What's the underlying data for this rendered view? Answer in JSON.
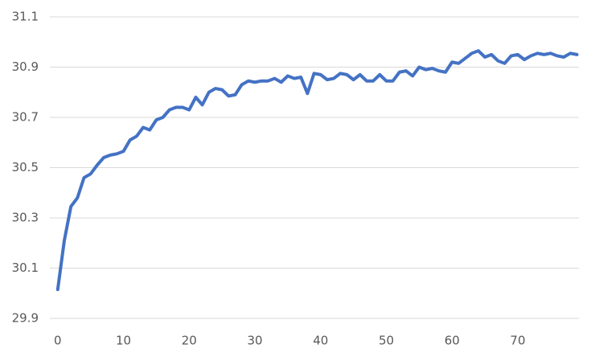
{
  "chart_data": {
    "type": "line",
    "x": [
      0,
      1,
      2,
      3,
      4,
      5,
      6,
      7,
      8,
      9,
      10,
      11,
      12,
      13,
      14,
      15,
      16,
      17,
      18,
      19,
      20,
      21,
      22,
      23,
      24,
      25,
      26,
      27,
      28,
      29,
      30,
      31,
      32,
      33,
      34,
      35,
      36,
      37,
      38,
      39,
      40,
      41,
      42,
      43,
      44,
      45,
      46,
      47,
      48,
      49,
      50,
      51,
      52,
      53,
      54,
      55,
      56,
      57,
      58,
      59,
      60,
      61,
      62,
      63,
      64,
      65,
      66,
      67,
      68,
      69,
      70,
      71,
      72,
      73,
      74,
      75,
      76,
      77,
      78,
      79
    ],
    "series": [
      {
        "color": "#4472c4",
        "values": [
          30.015,
          30.21,
          30.345,
          30.38,
          30.46,
          30.475,
          30.51,
          30.54,
          30.55,
          30.555,
          30.565,
          30.61,
          30.625,
          30.66,
          30.65,
          30.69,
          30.7,
          30.73,
          30.74,
          30.74,
          30.73,
          30.78,
          30.75,
          30.8,
          30.815,
          30.81,
          30.785,
          30.79,
          30.83,
          30.845,
          30.84,
          30.845,
          30.845,
          30.855,
          30.84,
          30.865,
          30.855,
          30.86,
          30.795,
          30.875,
          30.87,
          30.85,
          30.855,
          30.875,
          30.87,
          30.85,
          30.87,
          30.845,
          30.845,
          30.87,
          30.845,
          30.845,
          30.88,
          30.885,
          30.865,
          30.9,
          30.89,
          30.895,
          30.885,
          30.88,
          30.92,
          30.915,
          30.935,
          30.955,
          30.965,
          30.94,
          30.95,
          30.925,
          30.915,
          30.945,
          30.95,
          30.93,
          30.945,
          30.955,
          30.95,
          30.955,
          30.945,
          30.94,
          30.955,
          30.95
        ]
      }
    ],
    "xlim": [
      -1.2,
      79.3
    ],
    "xticks": [
      0,
      10,
      20,
      30,
      40,
      50,
      60,
      70
    ],
    "ylim": [
      29.9,
      31.1
    ],
    "yticks": [
      29.9,
      30.1,
      30.3,
      30.5,
      30.7,
      30.9,
      31.1
    ],
    "grid": true
  }
}
